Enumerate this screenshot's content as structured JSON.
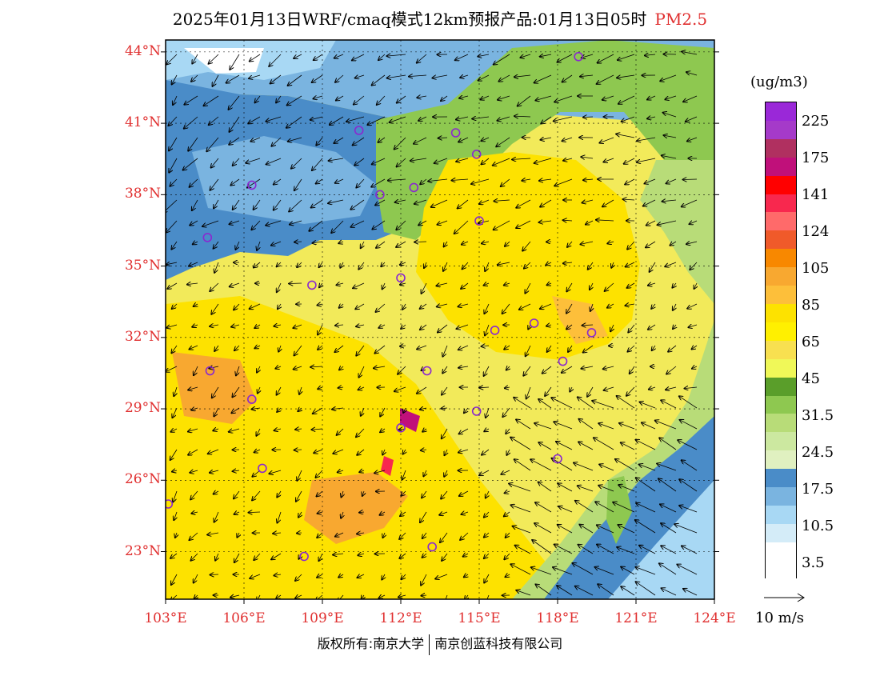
{
  "title": {
    "main": "2025年01月13日WRF/cmaq模式12km预报产品:01月13日05时",
    "variable": "PM2.5"
  },
  "axes": {
    "lat_labels": [
      "44°N",
      "41°N",
      "38°N",
      "35°N",
      "32°N",
      "29°N",
      "26°N",
      "23°N"
    ],
    "lon_labels": [
      "103°E",
      "106°E",
      "109°E",
      "112°E",
      "115°E",
      "118°E",
      "121°E",
      "124°E"
    ],
    "lat_range": [
      21,
      44.5
    ],
    "lon_range": [
      103,
      124
    ]
  },
  "legend": {
    "unit": "(ug/m3)",
    "labels": [
      "225",
      "175",
      "141",
      "124",
      "105",
      "85",
      "65",
      "45",
      "31.5",
      "24.5",
      "17.5",
      "10.5",
      "3.5"
    ],
    "colors": [
      "#9a28d8",
      "#a53ac9",
      "#b03060",
      "#c0107a",
      "#ff0000",
      "#f8284e",
      "#ff6a6a",
      "#f05a2a",
      "#f88800",
      "#f8a830",
      "#fdbf3a",
      "#fde200",
      "#fff000",
      "#f8e050",
      "#f0f858",
      "#5a9e2a",
      "#8ec850",
      "#b8dc78",
      "#cce8a0",
      "#e0f0c0",
      "#4a8cc8",
      "#7ab4e0",
      "#a8d8f4",
      "#d4ecf8",
      "#ffffff",
      "#ffffff"
    ]
  },
  "wind_reference": {
    "label": "10 m/s"
  },
  "copyright": {
    "left": "版权所有:南京大学",
    "right": "南京创蓝科技有限公司"
  },
  "cities": [
    {
      "lon": 118.8,
      "lat": 43.8
    },
    {
      "lon": 110.4,
      "lat": 40.7
    },
    {
      "lon": 114.1,
      "lat": 40.6
    },
    {
      "lon": 114.9,
      "lat": 39.7
    },
    {
      "lon": 106.3,
      "lat": 38.4
    },
    {
      "lon": 111.2,
      "lat": 38.0
    },
    {
      "lon": 112.5,
      "lat": 38.3
    },
    {
      "lon": 115.0,
      "lat": 36.9
    },
    {
      "lon": 104.6,
      "lat": 36.2
    },
    {
      "lon": 112.0,
      "lat": 34.5
    },
    {
      "lon": 108.6,
      "lat": 34.2
    },
    {
      "lon": 117.1,
      "lat": 32.6
    },
    {
      "lon": 115.6,
      "lat": 32.3
    },
    {
      "lon": 119.3,
      "lat": 32.2
    },
    {
      "lon": 118.2,
      "lat": 31.0
    },
    {
      "lon": 104.7,
      "lat": 30.6
    },
    {
      "lon": 113.0,
      "lat": 30.6
    },
    {
      "lon": 106.3,
      "lat": 29.4
    },
    {
      "lon": 114.9,
      "lat": 28.9
    },
    {
      "lon": 112.0,
      "lat": 28.2
    },
    {
      "lon": 106.7,
      "lat": 26.5
    },
    {
      "lon": 118.0,
      "lat": 26.9
    },
    {
      "lon": 103.1,
      "lat": 25.0
    },
    {
      "lon": 108.3,
      "lat": 22.8
    },
    {
      "lon": 113.2,
      "lat": 23.2
    }
  ]
}
